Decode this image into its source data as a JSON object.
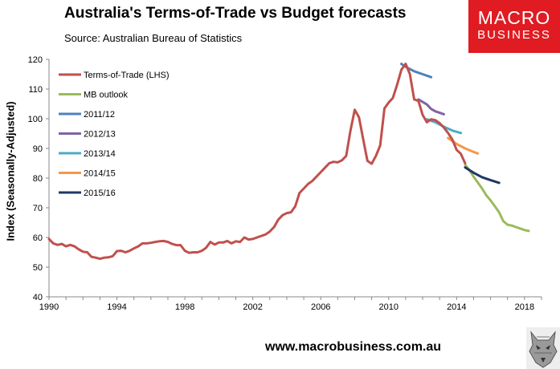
{
  "header": {
    "title": "Australia's Terms-of-Trade vs Budget forecasts",
    "subtitle": "Source: Australian Bureau of Statistics"
  },
  "logo": {
    "line1": "MACRO",
    "line2": "BUSINESS",
    "color": "#e01b22"
  },
  "footer": {
    "website": "www.macrobusiness.com.au"
  },
  "chart_data": {
    "type": "line",
    "title": "Australia's Terms-of-Trade vs Budget forecasts",
    "subtitle": "Source: Australian Bureau of Statistics",
    "xlabel": "",
    "ylabel": "Index (Seasonally-Adjusted)",
    "xlim": [
      1990,
      2019
    ],
    "ylim": [
      40,
      120
    ],
    "xticks": [
      1990,
      1994,
      1998,
      2002,
      2006,
      2010,
      2014,
      2018
    ],
    "yticks": [
      40,
      50,
      60,
      70,
      80,
      90,
      100,
      110,
      120
    ],
    "grid": false,
    "legend_position": "top-left",
    "series": [
      {
        "name": "Terms-of-Trade (LHS)",
        "color": "#c0504d",
        "points": [
          [
            1990,
            59.5
          ],
          [
            1990.25,
            58
          ],
          [
            1990.5,
            57.5
          ],
          [
            1990.75,
            57.8
          ],
          [
            1991,
            57
          ],
          [
            1991.25,
            57.5
          ],
          [
            1991.5,
            57
          ],
          [
            1991.75,
            56
          ],
          [
            1992,
            55.2
          ],
          [
            1992.25,
            55
          ],
          [
            1992.5,
            53.5
          ],
          [
            1992.75,
            53.2
          ],
          [
            1993,
            52.8
          ],
          [
            1993.25,
            53.2
          ],
          [
            1993.5,
            53.3
          ],
          [
            1993.75,
            53.7
          ],
          [
            1994,
            55.4
          ],
          [
            1994.25,
            55.5
          ],
          [
            1994.5,
            55
          ],
          [
            1994.75,
            55.5
          ],
          [
            1995,
            56.3
          ],
          [
            1995.25,
            57
          ],
          [
            1995.5,
            58
          ],
          [
            1995.75,
            58
          ],
          [
            1996,
            58.2
          ],
          [
            1996.25,
            58.5
          ],
          [
            1996.5,
            58.7
          ],
          [
            1996.75,
            58.8
          ],
          [
            1997,
            58.5
          ],
          [
            1997.25,
            57.8
          ],
          [
            1997.5,
            57.4
          ],
          [
            1997.75,
            57.4
          ],
          [
            1998,
            55.5
          ],
          [
            1998.25,
            54.8
          ],
          [
            1998.5,
            55
          ],
          [
            1998.75,
            55
          ],
          [
            1999,
            55.5
          ],
          [
            1999.25,
            56.5
          ],
          [
            1999.5,
            58.5
          ],
          [
            1999.75,
            57.6
          ],
          [
            2000,
            58.3
          ],
          [
            2000.25,
            58.3
          ],
          [
            2000.5,
            58.8
          ],
          [
            2000.75,
            58
          ],
          [
            2001,
            58.7
          ],
          [
            2001.25,
            58.5
          ],
          [
            2001.5,
            60
          ],
          [
            2001.75,
            59.3
          ],
          [
            2002,
            59.5
          ],
          [
            2002.25,
            60
          ],
          [
            2002.5,
            60.5
          ],
          [
            2002.75,
            61
          ],
          [
            2003,
            62
          ],
          [
            2003.25,
            63.5
          ],
          [
            2003.5,
            66
          ],
          [
            2003.75,
            67.5
          ],
          [
            2004,
            68.2
          ],
          [
            2004.25,
            68.5
          ],
          [
            2004.5,
            70.5
          ],
          [
            2004.75,
            75
          ],
          [
            2005,
            76.5
          ],
          [
            2005.25,
            78
          ],
          [
            2005.5,
            79
          ],
          [
            2005.75,
            80.5
          ],
          [
            2006,
            82
          ],
          [
            2006.25,
            83.5
          ],
          [
            2006.5,
            85
          ],
          [
            2006.75,
            85.5
          ],
          [
            2007,
            85.3
          ],
          [
            2007.25,
            86
          ],
          [
            2007.5,
            87.5
          ],
          [
            2007.75,
            96
          ],
          [
            2008,
            103
          ],
          [
            2008.25,
            100.5
          ],
          [
            2008.5,
            93
          ],
          [
            2008.75,
            85.8
          ],
          [
            2009,
            84.8
          ],
          [
            2009.25,
            87.5
          ],
          [
            2009.5,
            91
          ],
          [
            2009.75,
            103.5
          ],
          [
            2010,
            105.5
          ],
          [
            2010.25,
            107
          ],
          [
            2010.5,
            111.5
          ],
          [
            2010.75,
            116.5
          ],
          [
            2011,
            118.5
          ],
          [
            2011.25,
            115
          ],
          [
            2011.5,
            106.5
          ],
          [
            2011.75,
            106
          ],
          [
            2012,
            101.3
          ],
          [
            2012.25,
            98.8
          ],
          [
            2012.5,
            99.8
          ],
          [
            2012.75,
            99.5
          ],
          [
            2013,
            98.5
          ],
          [
            2013.25,
            97
          ],
          [
            2013.5,
            95.2
          ],
          [
            2013.75,
            93
          ],
          [
            2014,
            89.5
          ],
          [
            2014.25,
            88.2
          ],
          [
            2014.5,
            85
          ]
        ]
      },
      {
        "name": "MB outlook",
        "color": "#9bbb59",
        "points": [
          [
            2014.5,
            84.5
          ],
          [
            2014.75,
            82.7
          ],
          [
            2015,
            80.5
          ],
          [
            2015.25,
            78.5
          ],
          [
            2015.5,
            76.5
          ],
          [
            2015.75,
            74.2
          ],
          [
            2016,
            72.5
          ],
          [
            2016.25,
            70.5
          ],
          [
            2016.5,
            68.5
          ],
          [
            2016.75,
            65.5
          ],
          [
            2017,
            64.3
          ],
          [
            2017.25,
            64
          ],
          [
            2017.5,
            63.5
          ],
          [
            2017.75,
            63
          ],
          [
            2018,
            62.5
          ],
          [
            2018.25,
            62.2
          ]
        ]
      },
      {
        "name": "2011/12",
        "color": "#4f81bd",
        "points": [
          [
            2010.75,
            118.5
          ],
          [
            2011,
            117.5
          ],
          [
            2011.5,
            116
          ],
          [
            2012,
            115
          ],
          [
            2012.5,
            114
          ]
        ]
      },
      {
        "name": "2012/13",
        "color": "#8064a2",
        "points": [
          [
            2011.75,
            106.5
          ],
          [
            2012.25,
            104.8
          ],
          [
            2012.5,
            103.3
          ],
          [
            2012.75,
            102.5
          ],
          [
            2013,
            102
          ],
          [
            2013.25,
            101.5
          ]
        ]
      },
      {
        "name": "2013/14",
        "color": "#4bacc6",
        "points": [
          [
            2012.25,
            99.8
          ],
          [
            2012.75,
            98.8
          ],
          [
            2013.25,
            97.3
          ],
          [
            2013.75,
            96
          ],
          [
            2014.25,
            95.2
          ]
        ]
      },
      {
        "name": "2014/15",
        "color": "#f79646",
        "points": [
          [
            2013.5,
            93.5
          ],
          [
            2014,
            91.5
          ],
          [
            2014.5,
            90
          ],
          [
            2015,
            88.8
          ],
          [
            2015.25,
            88.3
          ]
        ]
      },
      {
        "name": "2015/16",
        "color": "#1f3864",
        "points": [
          [
            2014.5,
            83.6
          ],
          [
            2015,
            81.8
          ],
          [
            2015.5,
            80.3
          ],
          [
            2016,
            79.3
          ],
          [
            2016.5,
            78.4
          ]
        ]
      }
    ]
  }
}
